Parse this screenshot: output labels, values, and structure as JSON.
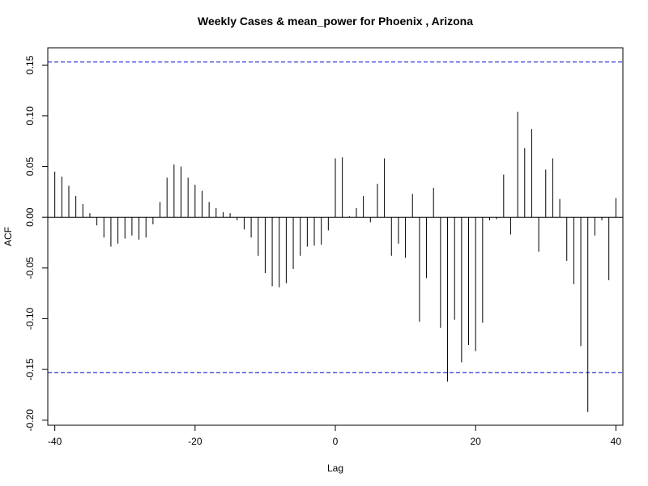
{
  "chart_data": {
    "type": "bar",
    "title": "Weekly Cases & mean_power for Phoenix , Arizona",
    "xlabel": "Lag",
    "ylabel": "ACF",
    "xlim": [
      -41,
      41
    ],
    "ylim": [
      -0.205,
      0.167
    ],
    "x_ticks": [
      -40,
      -20,
      0,
      20,
      40
    ],
    "x_tick_labels": [
      "-40",
      "-20",
      "0",
      "20",
      "40"
    ],
    "y_ticks": [
      -0.2,
      -0.15,
      -0.1,
      -0.05,
      0.0,
      0.05,
      0.1,
      0.15
    ],
    "y_tick_labels": [
      "-0.20",
      "-0.15",
      "-0.10",
      "-0.05",
      "0.00",
      "0.05",
      "0.10",
      "0.15"
    ],
    "confidence_limits": [
      0.153,
      -0.153
    ],
    "confidence_line_color": "#0000cc",
    "bar_color": "#000000",
    "grid": false,
    "x": [
      -40,
      -39,
      -38,
      -37,
      -36,
      -35,
      -34,
      -33,
      -32,
      -31,
      -30,
      -29,
      -28,
      -27,
      -26,
      -25,
      -24,
      -23,
      -22,
      -21,
      -20,
      -19,
      -18,
      -17,
      -16,
      -15,
      -14,
      -13,
      -12,
      -11,
      -10,
      -9,
      -8,
      -7,
      -6,
      -5,
      -4,
      -3,
      -2,
      -1,
      0,
      1,
      2,
      3,
      4,
      5,
      6,
      7,
      8,
      9,
      10,
      11,
      12,
      13,
      14,
      15,
      16,
      17,
      18,
      19,
      20,
      21,
      22,
      23,
      24,
      25,
      26,
      27,
      28,
      29,
      30,
      31,
      32,
      33,
      34,
      35,
      36,
      37,
      38,
      39,
      40
    ],
    "values": [
      0.045,
      0.04,
      0.031,
      0.021,
      0.013,
      0.004,
      -0.008,
      -0.02,
      -0.029,
      -0.026,
      -0.021,
      -0.018,
      -0.022,
      -0.02,
      -0.007,
      0.015,
      0.039,
      0.052,
      0.05,
      0.039,
      0.032,
      0.026,
      0.015,
      0.009,
      0.005,
      0.004,
      -0.003,
      -0.012,
      -0.02,
      -0.038,
      -0.055,
      -0.068,
      -0.069,
      -0.065,
      -0.051,
      -0.038,
      -0.029,
      -0.028,
      -0.027,
      -0.013,
      0.058,
      0.059,
      0.001,
      0.009,
      0.021,
      -0.005,
      0.033,
      0.058,
      -0.038,
      -0.026,
      -0.04,
      0.023,
      -0.103,
      -0.06,
      0.029,
      -0.109,
      -0.162,
      -0.101,
      -0.143,
      -0.126,
      -0.132,
      -0.104,
      -0.003,
      -0.002,
      0.042,
      -0.017,
      0.104,
      0.068,
      0.087,
      -0.034,
      0.047,
      0.058,
      0.018,
      -0.043,
      -0.066,
      -0.127,
      -0.192,
      -0.018,
      -0.003,
      -0.062,
      0.019
    ]
  }
}
